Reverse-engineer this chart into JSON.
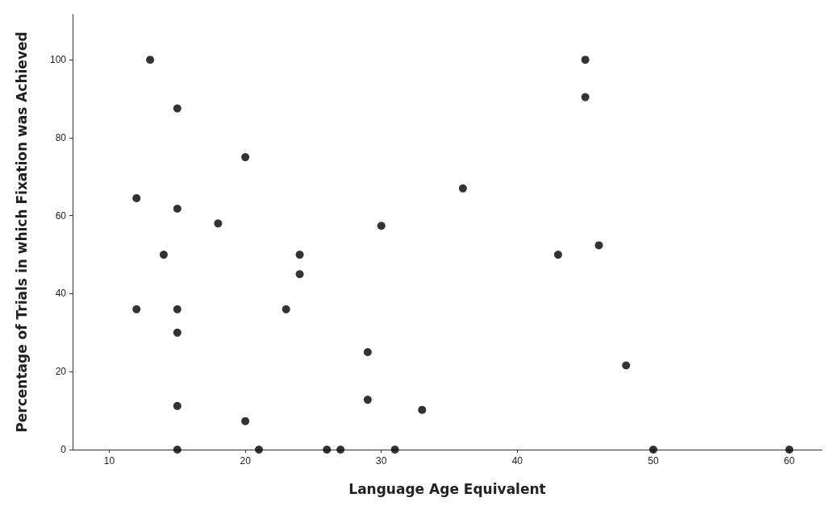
{
  "chart_data": {
    "type": "scatter",
    "xlabel": "Language Age Equivalent",
    "ylabel": "Percentage of Trials in which Fixation was Achieved",
    "x": [
      12,
      13,
      15,
      15,
      14,
      12,
      15,
      15,
      15,
      15,
      18,
      20,
      20,
      21,
      23,
      24,
      24,
      26,
      27,
      29,
      29,
      30,
      31,
      33,
      36,
      43,
      45,
      45,
      46,
      48,
      50,
      60
    ],
    "values": [
      64.5,
      100,
      87.5,
      61.8,
      50,
      36,
      36,
      30,
      11.2,
      0,
      58,
      75,
      7.3,
      0,
      36,
      50,
      45,
      0,
      0,
      25,
      12.8,
      57.4,
      0,
      10.2,
      67,
      50,
      100,
      90.4,
      52.4,
      21.6,
      0,
      0
    ],
    "color": "#000000",
    "marker": "circle",
    "grid": false,
    "xlim": [
      7.3,
      62.4
    ],
    "xticks": [
      10,
      20,
      30,
      40,
      50,
      60
    ],
    "ylim": [
      0,
      111.6
    ],
    "yticks": [
      0,
      20,
      40,
      60,
      80,
      100
    ]
  }
}
